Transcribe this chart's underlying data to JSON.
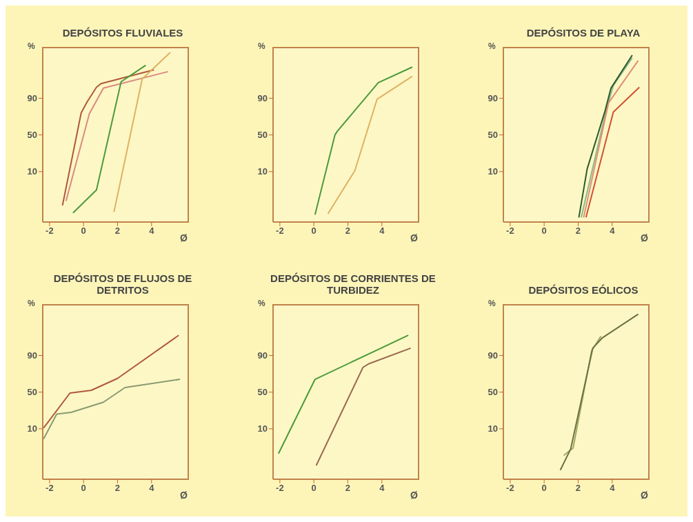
{
  "chart_data": [
    {
      "type": "line",
      "title": "DEPÓSITOS FLUVIALES",
      "ylabel": "%",
      "xlabel": "Ø",
      "xlim": [
        -2.4,
        6.2
      ],
      "ylim": [
        -45,
        146
      ],
      "xticks": [
        -2,
        0,
        2,
        4
      ],
      "yticks": [
        10,
        50,
        90
      ],
      "grid": false,
      "marker": "none",
      "line_style": "solid",
      "series": [
        {
          "color": "#b0583a",
          "x": [
            -1.24,
            -0.14,
            0.21,
            0.76,
            1.03,
            4.14
          ],
          "values": [
            -27,
            74,
            86,
            102,
            106,
            121
          ]
        },
        {
          "color": "#d98a80",
          "x": [
            -1.03,
            0.34,
            1.17,
            4.97
          ],
          "values": [
            -22,
            73,
            101,
            119
          ]
        },
        {
          "color": "#4a9a3a",
          "x": [
            -0.62,
            0.76,
            2.21,
            3.66
          ],
          "values": [
            -35,
            -10,
            108,
            126
          ]
        },
        {
          "color": "#e0b060",
          "x": [
            1.79,
            3.45,
            5.1
          ],
          "values": [
            -34,
            111,
            140
          ]
        }
      ]
    },
    {
      "type": "line",
      "ylabel": "%",
      "xlabel": "Ø",
      "xlim": [
        -2.4,
        6.2
      ],
      "ylim": [
        -45,
        146
      ],
      "xticks": [
        -2,
        0,
        2,
        4
      ],
      "yticks": [
        10,
        50,
        90
      ],
      "grid": false,
      "marker": "none",
      "line_style": "solid",
      "series": [
        {
          "color": "#4a9a3a",
          "x": [
            0.07,
            1.24,
            1.38,
            3.79,
            5.79
          ],
          "values": [
            -37,
            50,
            54,
            107,
            124
          ]
        },
        {
          "color": "#e0b060",
          "x": [
            0.83,
            2.41,
            3.72,
            5.79
          ],
          "values": [
            -36,
            11,
            89,
            114
          ]
        }
      ]
    },
    {
      "type": "line",
      "title": "DEPÓSITOS DE PLAYA",
      "ylabel": "%",
      "xlabel": "Ø",
      "xlim": [
        -2.4,
        6.2
      ],
      "ylim": [
        -45,
        146
      ],
      "xticks": [
        -2,
        0,
        2,
        4
      ],
      "yticks": [
        10,
        50,
        90
      ],
      "grid": false,
      "marker": "none",
      "line_style": "solid",
      "series": [
        {
          "color": "#8ab890",
          "x": [
            2.18,
            3.65,
            4.07,
            5.18
          ],
          "values": [
            -40,
            77,
            104,
            134
          ]
        },
        {
          "color": "#e09070",
          "x": [
            2.32,
            3.79,
            5.53
          ],
          "values": [
            -40,
            85,
            131
          ]
        },
        {
          "color": "#d05030",
          "x": [
            2.46,
            4.07,
            5.6
          ],
          "values": [
            -40,
            75,
            102
          ]
        },
        {
          "color": "#2f5a2a",
          "x": [
            2.04,
            2.53,
            3.58,
            3.93,
            5.18
          ],
          "values": [
            -40,
            13,
            76,
            101,
            137
          ]
        }
      ]
    },
    {
      "type": "line",
      "title": "DEPÓSITOS DE FLUJOS DE DETRITOS",
      "ylabel": "%",
      "xlabel": "Ø",
      "xlim": [
        -2.4,
        6.2
      ],
      "ylim": [
        -45,
        146
      ],
      "xticks": [
        -2,
        0,
        2,
        4
      ],
      "yticks": [
        10,
        50,
        90
      ],
      "grid": false,
      "marker": "none",
      "line_style": "solid",
      "series": [
        {
          "color": "#b0583a",
          "x": [
            -2.35,
            -0.8,
            0.46,
            2.0,
            5.6
          ],
          "values": [
            11,
            49,
            52,
            65,
            112
          ]
        },
        {
          "color": "#8a9a70",
          "x": [
            -2.35,
            -1.58,
            -0.73,
            1.17,
            2.44,
            5.68
          ],
          "values": [
            -1,
            26,
            28,
            39,
            55,
            64
          ]
        }
      ]
    },
    {
      "type": "line",
      "title": "DEPÓSITOS DE CORRIENTES DE TURBIDEZ",
      "ylabel": "%",
      "xlabel": "Ø",
      "xlim": [
        -2.4,
        6.2
      ],
      "ylim": [
        -45,
        146
      ],
      "xticks": [
        -2,
        0,
        2,
        4
      ],
      "yticks": [
        10,
        50,
        90
      ],
      "grid": false,
      "marker": "none",
      "line_style": "solid",
      "series": [
        {
          "color": "#4a9a3a",
          "x": [
            -2.08,
            0.07,
            5.56
          ],
          "values": [
            -17,
            64,
            112
          ]
        },
        {
          "color": "#9a6a50",
          "x": [
            0.14,
            2.89,
            3.24,
            5.7
          ],
          "values": [
            -30,
            77,
            81,
            98
          ]
        }
      ]
    },
    {
      "type": "line",
      "title": "DEPÓSITOS EÓLICOS",
      "ylabel": "%",
      "xlabel": "Ø",
      "xlim": [
        -2.4,
        6.2
      ],
      "ylim": [
        -45,
        146
      ],
      "xticks": [
        -2,
        0,
        2,
        4
      ],
      "yticks": [
        10,
        50,
        90
      ],
      "grid": false,
      "marker": "none",
      "line_style": "solid",
      "series": [
        {
          "color": "#a0a860",
          "x": [
            1.15,
            1.7,
            2.79,
            3.34
          ],
          "values": [
            -19,
            -11,
            95,
            111
          ]
        },
        {
          "color": "#6a7040",
          "x": [
            0.95,
            1.56,
            2.86,
            3.41,
            5.53
          ],
          "values": [
            -35,
            -12,
            98,
            109,
            135
          ]
        }
      ]
    }
  ]
}
